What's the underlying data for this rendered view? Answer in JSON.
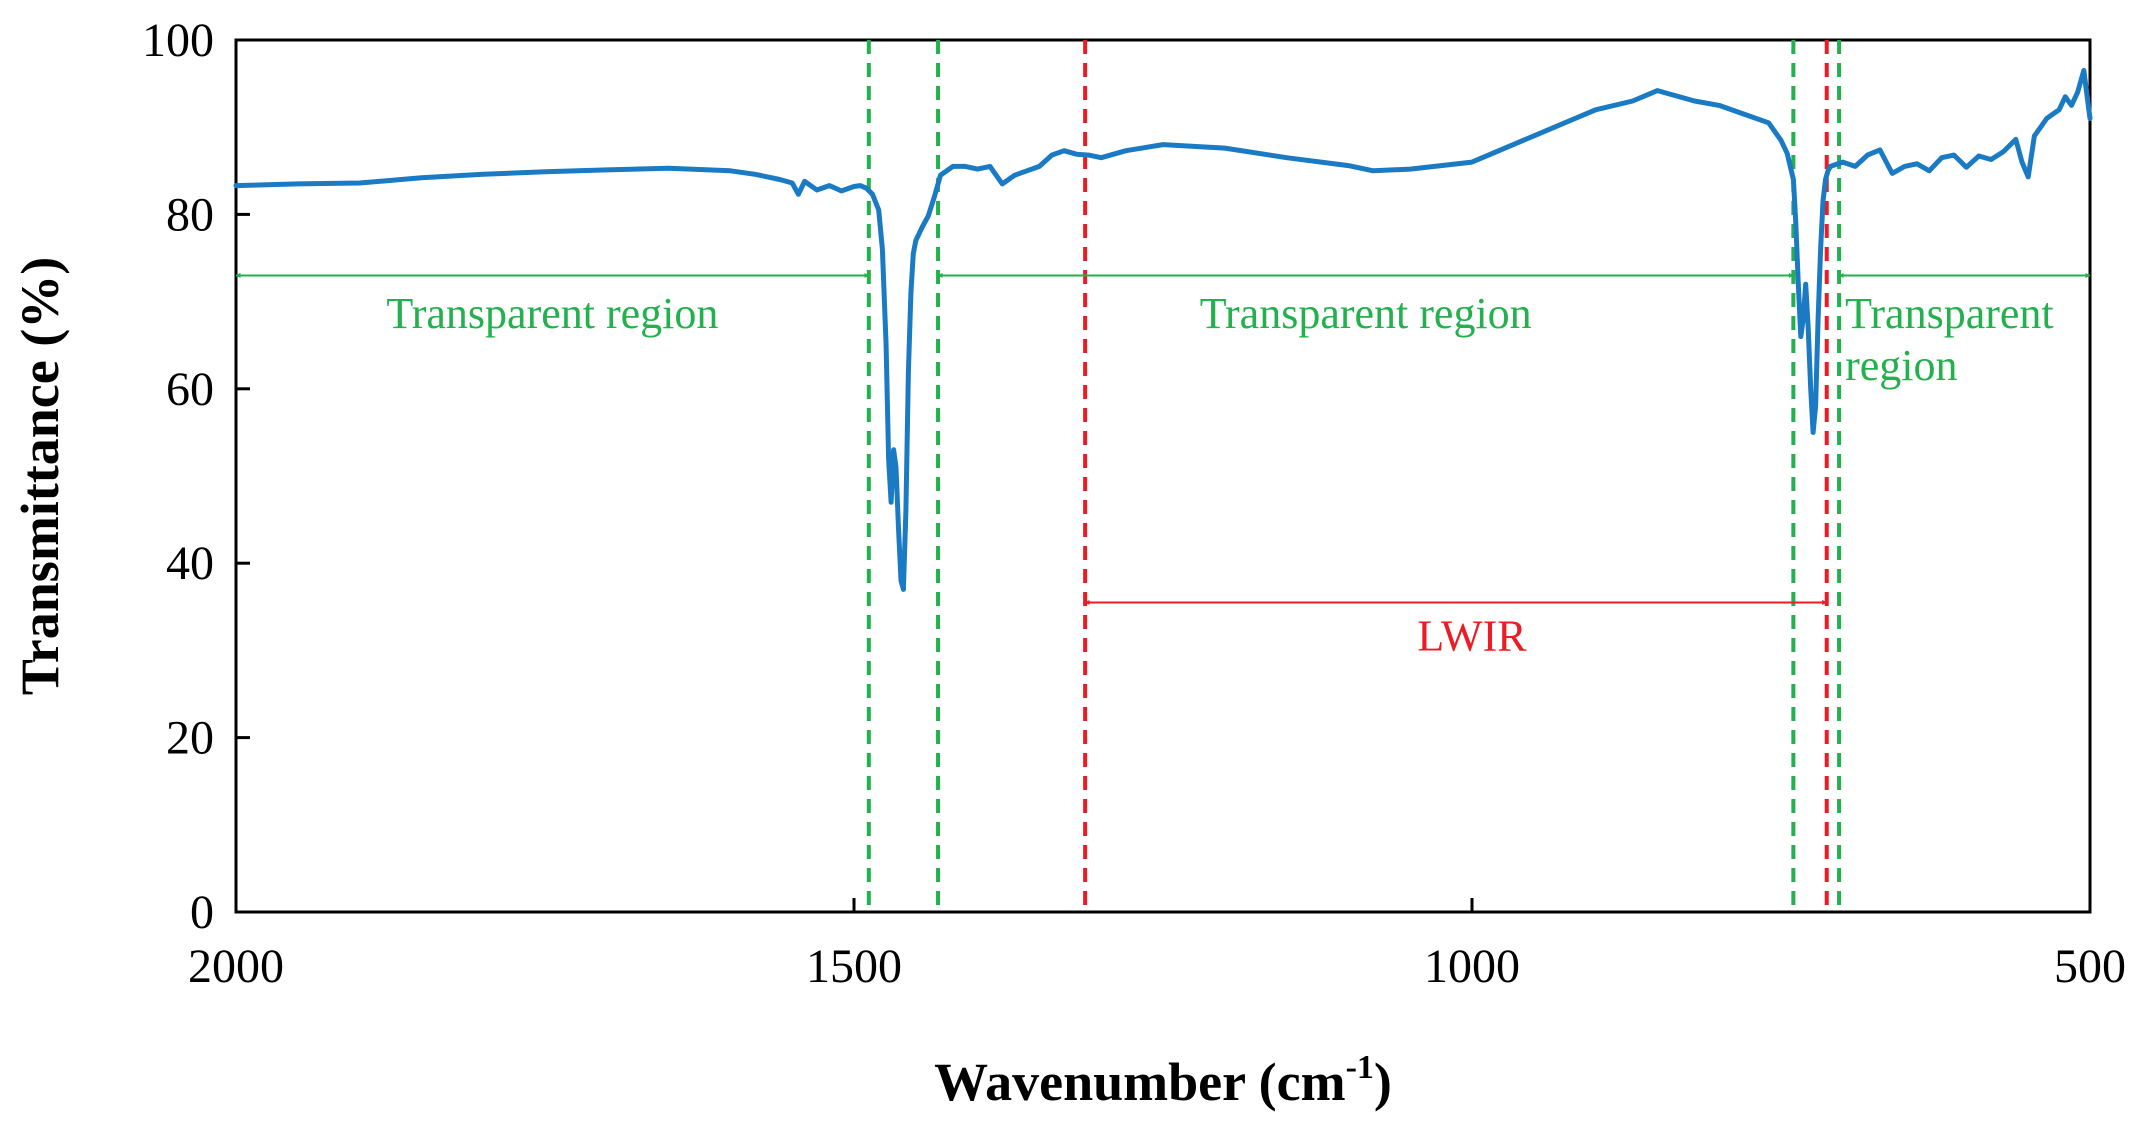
{
  "chart_data": {
    "type": "line",
    "title": "",
    "xlabel": "Wavenumber (cm",
    "xlabel_sup": "-1",
    "xlabel_end": ")",
    "ylabel": "Transmittance (%)",
    "xlim": [
      2000,
      500
    ],
    "ylim": [
      0,
      100
    ],
    "x_ticks": [
      2000,
      1500,
      1000,
      500
    ],
    "y_ticks": [
      0,
      20,
      40,
      60,
      80,
      100
    ],
    "x_tick_labels": [
      "2000",
      "1500",
      "1000",
      "500"
    ],
    "y_tick_labels": [
      "0",
      "20",
      "40",
      "60",
      "80",
      "100"
    ],
    "colors": {
      "series": "#1a7bc4",
      "transparent": "#22b14c",
      "lwir": "#ed1c24"
    },
    "series": [
      {
        "name": "Transmittance",
        "x": [
          2000,
          1950,
          1900,
          1850,
          1800,
          1750,
          1700,
          1650,
          1600,
          1580,
          1560,
          1550,
          1545,
          1540,
          1530,
          1520,
          1510,
          1500,
          1495,
          1490,
          1485,
          1480,
          1477,
          1474,
          1472,
          1470,
          1468,
          1466,
          1464,
          1462,
          1460,
          1458,
          1456,
          1454,
          1452,
          1450,
          1445,
          1440,
          1435,
          1430,
          1420,
          1410,
          1400,
          1390,
          1380,
          1370,
          1360,
          1350,
          1340,
          1330,
          1320,
          1310,
          1300,
          1280,
          1250,
          1200,
          1150,
          1100,
          1080,
          1050,
          1000,
          950,
          900,
          870,
          850,
          820,
          800,
          780,
          760,
          750,
          745,
          740,
          738,
          736,
          734,
          732,
          730,
          728,
          726,
          724,
          722,
          720,
          718,
          716,
          714,
          712,
          710,
          700,
          690,
          680,
          670,
          660,
          650,
          640,
          630,
          620,
          610,
          600,
          590,
          580,
          570,
          560,
          555,
          550,
          545,
          540,
          535,
          530,
          525,
          520,
          515,
          510,
          505,
          500
        ],
        "values": [
          83.3,
          83.5,
          83.6,
          84.2,
          84.6,
          84.9,
          85.1,
          85.3,
          85.0,
          84.6,
          84.0,
          83.6,
          82.3,
          83.8,
          82.8,
          83.3,
          82.7,
          83.2,
          83.3,
          83.0,
          82.3,
          80.5,
          76.0,
          65.0,
          52.0,
          47.0,
          53.0,
          51.0,
          44.0,
          38.0,
          37.0,
          46.0,
          62.0,
          71.0,
          75.5,
          77.0,
          78.5,
          79.8,
          82.0,
          84.5,
          85.5,
          85.5,
          85.2,
          85.5,
          83.5,
          84.5,
          85.0,
          85.5,
          86.8,
          87.3,
          86.9,
          86.8,
          86.5,
          87.3,
          88.0,
          87.6,
          86.5,
          85.6,
          85.0,
          85.2,
          86.0,
          89.0,
          92.0,
          93.0,
          94.2,
          93.0,
          92.5,
          91.5,
          90.5,
          88.5,
          87.0,
          84.0,
          79.0,
          72.0,
          66.0,
          68.0,
          72.0,
          67.0,
          60.0,
          55.0,
          58.0,
          68.0,
          76.0,
          81.5,
          84.0,
          85.0,
          85.5,
          86.0,
          85.5,
          86.8,
          87.4,
          84.7,
          85.5,
          85.8,
          85.0,
          86.5,
          86.8,
          85.4,
          86.7,
          86.3,
          87.2,
          88.6,
          86.0,
          84.3,
          89.0,
          90.0,
          91.0,
          91.5,
          92.0,
          93.5,
          92.5,
          94.0,
          96.5,
          91.0
        ]
      }
    ],
    "reference_lines": [
      {
        "x": 1488,
        "kind": "transparent"
      },
      {
        "x": 1432,
        "kind": "transparent"
      },
      {
        "x": 1313,
        "kind": "lwir"
      },
      {
        "x": 740,
        "kind": "transparent"
      },
      {
        "x": 713,
        "kind": "lwir"
      },
      {
        "x": 703,
        "kind": "transparent"
      }
    ],
    "annotations": [
      {
        "label": "Transparent region",
        "from": 2000,
        "to": 1488,
        "y": 73,
        "label_x": 1744,
        "label_y": 67,
        "kind": "transparent"
      },
      {
        "label": "Transparent region",
        "from": 1432,
        "to": 740,
        "y": 73,
        "label_x": 1086,
        "label_y": 67,
        "kind": "transparent"
      },
      {
        "label": "Transparent",
        "label_2": "region",
        "from": 703,
        "to": 500,
        "y": 73,
        "label_x": 675,
        "label_y": 67,
        "label_2_y": 61,
        "kind": "transparent"
      },
      {
        "label": "LWIR",
        "from": 1313,
        "to": 713,
        "y": 35.5,
        "label_x": 1000,
        "label_y": 30,
        "kind": "lwir"
      }
    ]
  }
}
